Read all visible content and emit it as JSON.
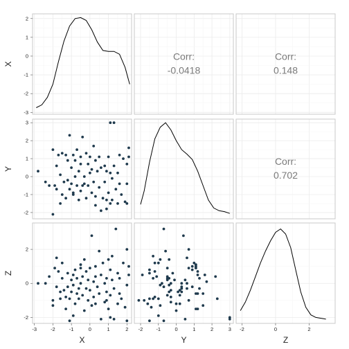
{
  "chart_data": {
    "type": "scatter",
    "variables": [
      "X",
      "Y",
      "Z"
    ],
    "axis_ticks": {
      "X": [
        -3,
        -2,
        -1,
        0,
        1,
        2
      ],
      "Y": [
        -2,
        -1,
        0,
        1,
        2,
        3
      ],
      "Z": [
        -2,
        0,
        2
      ]
    },
    "axis_ranges": {
      "X": [
        -3.1,
        2.25
      ],
      "Y": [
        -2.35,
        3.2
      ],
      "Z": [
        -2.35,
        3.55
      ]
    },
    "grid": true,
    "correlations": [
      {
        "row": "X",
        "col": "Y",
        "label": "Corr:",
        "value": "-0.0418"
      },
      {
        "row": "X",
        "col": "Z",
        "label": "Corr:",
        "value": "0.148"
      },
      {
        "row": "Y",
        "col": "Z",
        "label": "Corr:",
        "value": "0.702"
      }
    ],
    "density": {
      "X": [
        [
          -2.9,
          -2.75
        ],
        [
          -2.6,
          -2.6
        ],
        [
          -2.3,
          -2.2
        ],
        [
          -2.0,
          -1.5
        ],
        [
          -1.7,
          -0.3
        ],
        [
          -1.4,
          0.8
        ],
        [
          -1.1,
          1.6
        ],
        [
          -0.8,
          2.0
        ],
        [
          -0.5,
          2.05
        ],
        [
          -0.2,
          1.9
        ],
        [
          0.1,
          1.4
        ],
        [
          0.4,
          0.75
        ],
        [
          0.7,
          0.3
        ],
        [
          1.0,
          0.25
        ],
        [
          1.3,
          0.25
        ],
        [
          1.6,
          0.1
        ],
        [
          1.9,
          -0.6
        ],
        [
          2.15,
          -1.5
        ]
      ],
      "Y": [
        [
          -2.0,
          -1.55
        ],
        [
          -1.8,
          -0.8
        ],
        [
          -1.5,
          0.8
        ],
        [
          -1.2,
          2.1
        ],
        [
          -0.9,
          2.75
        ],
        [
          -0.6,
          3.0
        ],
        [
          -0.3,
          2.6
        ],
        [
          0.0,
          2.0
        ],
        [
          0.3,
          1.5
        ],
        [
          0.6,
          1.25
        ],
        [
          0.9,
          0.95
        ],
        [
          1.2,
          0.3
        ],
        [
          1.5,
          -0.5
        ],
        [
          1.8,
          -1.3
        ],
        [
          2.1,
          -1.75
        ],
        [
          2.4,
          -1.9
        ],
        [
          2.7,
          -1.95
        ],
        [
          3.0,
          -2.05
        ]
      ],
      "Z": [
        [
          -2.1,
          -1.6
        ],
        [
          -1.8,
          -1.1
        ],
        [
          -1.5,
          -0.4
        ],
        [
          -1.2,
          0.4
        ],
        [
          -0.9,
          1.2
        ],
        [
          -0.6,
          1.9
        ],
        [
          -0.3,
          2.5
        ],
        [
          0.0,
          3.0
        ],
        [
          0.3,
          3.2
        ],
        [
          0.6,
          2.9
        ],
        [
          0.9,
          2.1
        ],
        [
          1.2,
          0.8
        ],
        [
          1.5,
          -0.5
        ],
        [
          1.8,
          -1.4
        ],
        [
          2.1,
          -1.85
        ],
        [
          2.4,
          -2.0
        ],
        [
          2.7,
          -2.05
        ],
        [
          3.0,
          -2.1
        ]
      ]
    },
    "points": [
      [
        -2.8,
        0.3,
        0.0
      ],
      [
        -2.4,
        -0.3,
        0.0
      ],
      [
        -2.2,
        -0.5,
        0.4
      ],
      [
        -2.0,
        -2.1,
        -1.0
      ],
      [
        -2.0,
        1.5,
        -1.3
      ],
      [
        -1.9,
        -0.5,
        0.9
      ],
      [
        -1.8,
        0.6,
        1.5
      ],
      [
        -1.8,
        -0.7,
        -0.2
      ],
      [
        -1.7,
        1.2,
        0.7
      ],
      [
        -1.6,
        0.1,
        -0.5
      ],
      [
        -1.5,
        1.3,
        0.3
      ],
      [
        -1.5,
        -1.0,
        1.2
      ],
      [
        -1.4,
        -0.3,
        -0.4
      ],
      [
        -1.3,
        1.2,
        -1.5
      ],
      [
        -1.3,
        -1.2,
        -0.8
      ],
      [
        -1.2,
        0.9,
        -0.2
      ],
      [
        -1.2,
        -0.2,
        0.6
      ],
      [
        -1.1,
        2.3,
        -0.9
      ],
      [
        -1.1,
        -0.7,
        -2.2
      ],
      [
        -1.0,
        0.5,
        0.2
      ],
      [
        -1.0,
        -0.4,
        -0.5
      ],
      [
        -0.9,
        1.2,
        0.5
      ],
      [
        -0.9,
        -0.9,
        -0.1
      ],
      [
        -0.8,
        0.0,
        -1.2
      ],
      [
        -0.8,
        0.9,
        0.8
      ],
      [
        -0.7,
        -0.5,
        0.3
      ],
      [
        -0.7,
        1.5,
        -0.6
      ],
      [
        -0.6,
        -1.3,
        -0.9
      ],
      [
        -0.6,
        0.3,
        -0.3
      ],
      [
        -0.5,
        1.1,
        1.1
      ],
      [
        -0.5,
        -0.8,
        0.0
      ],
      [
        -0.4,
        -0.5,
        -0.7
      ],
      [
        -0.4,
        2.2,
        0.4
      ],
      [
        -0.3,
        0.0,
        -1.6
      ],
      [
        -0.3,
        -0.4,
        1.4
      ],
      [
        -0.2,
        1.3,
        -0.3
      ],
      [
        -0.2,
        -1.2,
        0.7
      ],
      [
        -0.1,
        0.7,
        -1.0
      ],
      [
        -0.1,
        -0.5,
        0.2
      ],
      [
        0.0,
        0.2,
        -0.4
      ],
      [
        0.0,
        1.1,
        0.9
      ],
      [
        0.1,
        -0.9,
        -1.3
      ],
      [
        0.1,
        0.4,
        2.8
      ],
      [
        0.2,
        1.7,
        0.1
      ],
      [
        0.2,
        -0.3,
        -0.8
      ],
      [
        0.3,
        0.9,
        1.0
      ],
      [
        0.3,
        -1.1,
        0.4
      ],
      [
        0.4,
        0.3,
        -0.2
      ],
      [
        0.5,
        -0.6,
        1.9
      ],
      [
        0.5,
        1.1,
        -0.6
      ],
      [
        0.6,
        -1.9,
        0.5
      ],
      [
        0.6,
        0.5,
        -2.1
      ],
      [
        0.7,
        -1.2,
        1.2
      ],
      [
        0.8,
        0.6,
        0.0
      ],
      [
        0.8,
        -0.3,
        -1.1
      ],
      [
        0.9,
        -1.3,
        0.3
      ],
      [
        0.9,
        0.3,
        -0.5
      ],
      [
        1.0,
        -0.9,
        1.4
      ],
      [
        1.0,
        1.1,
        -1.5
      ],
      [
        1.1,
        -1.5,
        0.8
      ],
      [
        1.1,
        0.2,
        -0.7
      ],
      [
        1.2,
        -1.3,
        1.6
      ],
      [
        1.2,
        -0.1,
        0.2
      ],
      [
        1.3,
        3.0,
        -2.1
      ],
      [
        1.3,
        0.6,
        -0.3
      ],
      [
        1.4,
        -0.7,
        3.2
      ],
      [
        1.5,
        -1.5,
        0.6
      ],
      [
        1.5,
        0.2,
        -1.2
      ],
      [
        1.6,
        -0.4,
        0.3
      ],
      [
        1.7,
        -1.0,
        -0.9
      ],
      [
        1.8,
        1.0,
        1.2
      ],
      [
        1.9,
        -1.4,
        -1.4
      ],
      [
        2.0,
        0.7,
        2.0
      ],
      [
        2.0,
        -1.5,
        -2.2
      ],
      [
        2.1,
        1.1,
        1.0
      ],
      [
        2.1,
        1.6,
        0.5
      ],
      [
        2.0,
        -0.4,
        -0.1
      ],
      [
        1.1,
        3.0,
        -2.0
      ],
      [
        -0.5,
        0.7,
        0.9
      ],
      [
        0.3,
        -1.6,
        -1.2
      ],
      [
        -1.6,
        -1.5,
        -0.9
      ],
      [
        -0.9,
        -1.0,
        -1.9
      ],
      [
        0.9,
        -1.8,
        -1.0
      ],
      [
        1.6,
        1.2,
        -0.6
      ]
    ]
  }
}
